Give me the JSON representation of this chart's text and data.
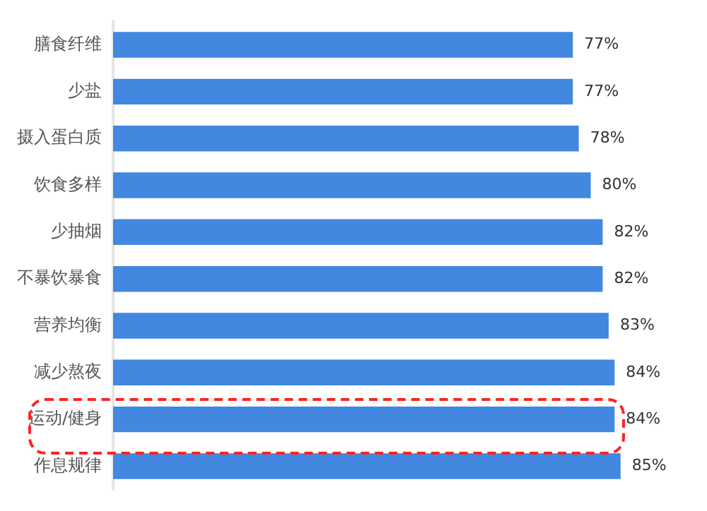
{
  "chart_data": {
    "type": "bar",
    "orientation": "horizontal",
    "categories": [
      "膳食纤维",
      "少盐",
      "摄入蛋白质",
      "饮食多样",
      "少抽烟",
      "不暴饮暴食",
      "营养均衡",
      "减少熬夜",
      "运动/健身",
      "作息规律"
    ],
    "values": [
      77,
      77,
      78,
      80,
      82,
      82,
      83,
      84,
      84,
      85
    ],
    "value_labels": [
      "77%",
      "77%",
      "78%",
      "80%",
      "82%",
      "82%",
      "83%",
      "84%",
      "84%",
      "85%"
    ],
    "color": "#4287e0",
    "tick_labels": "y",
    "grid": false,
    "legend": false
  }
}
